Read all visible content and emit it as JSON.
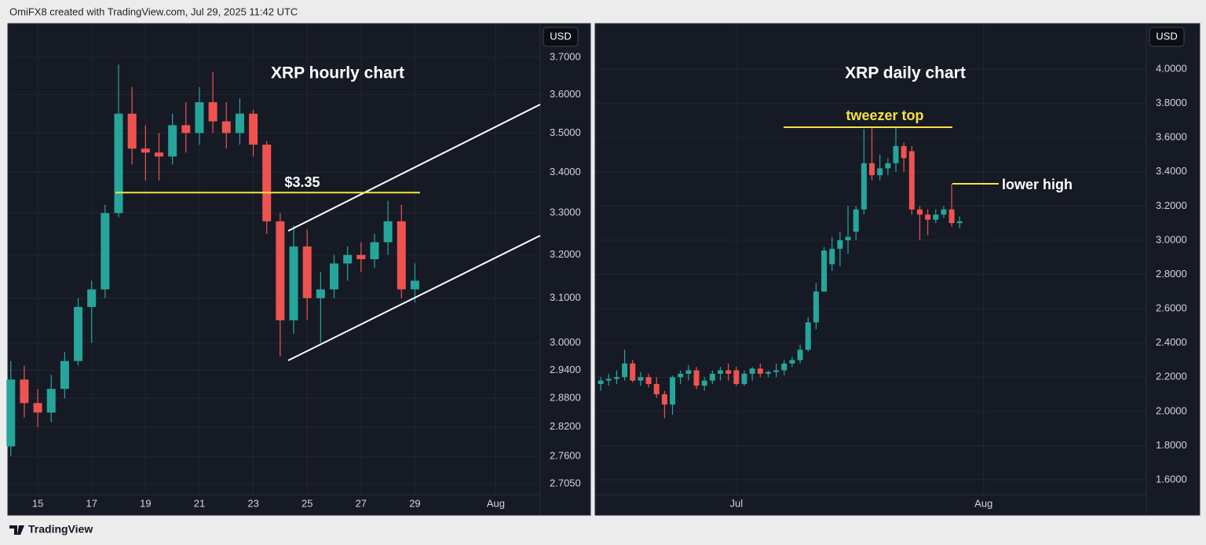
{
  "header": {
    "credit": "OmiFX8 created with TradingView.com, Jul 29, 2025 11:42 UTC"
  },
  "footer": {
    "brand": "TradingView"
  },
  "chart_data": [
    {
      "type": "candlestick",
      "title": "XRP hourly chart",
      "axis_label": "USD",
      "log_scale": true,
      "grid": true,
      "up_color": "#26a69a",
      "down_color": "#ef5350",
      "xlim": [
        13.89,
        33.65
      ],
      "xticks": [
        15,
        17,
        19,
        21,
        23,
        25,
        27,
        29,
        {
          "value": 32,
          "label": "Aug"
        }
      ],
      "ylim": [
        2.683,
        3.793
      ],
      "yticks": [
        {
          "value": 3.7,
          "label": "3.7000"
        },
        {
          "value": 3.6,
          "label": "3.6000"
        },
        {
          "value": 3.5,
          "label": "3.5000"
        },
        {
          "value": 3.4,
          "label": "3.4000"
        },
        {
          "value": 3.3,
          "label": "3.3000"
        },
        {
          "value": 3.2,
          "label": "3.2000"
        },
        {
          "value": 3.1,
          "label": "3.1000"
        },
        {
          "value": 3.0,
          "label": "3.0000"
        },
        {
          "value": 2.94,
          "label": "2.9400"
        },
        {
          "value": 2.88,
          "label": "2.8800"
        },
        {
          "value": 2.82,
          "label": "2.8200"
        },
        {
          "value": 2.76,
          "label": "2.7600"
        },
        {
          "value": 2.705,
          "label": "2.7050"
        }
      ],
      "level": 3.35,
      "level_label": "$3.35",
      "level_color": "#f5e342",
      "x": [
        14,
        14.5,
        15,
        15.5,
        16,
        16.5,
        17,
        17.5,
        18,
        18.5,
        19,
        19.5,
        20,
        20.5,
        21,
        21.5,
        22,
        22.5,
        23,
        23.5,
        24,
        24.5,
        25,
        25.5,
        26,
        26.5,
        27,
        27.5,
        28,
        28.5,
        29
      ],
      "open": [
        2.78,
        2.92,
        2.87,
        2.85,
        2.9,
        2.96,
        3.08,
        3.12,
        3.3,
        3.55,
        3.46,
        3.45,
        3.44,
        3.52,
        3.5,
        3.58,
        3.53,
        3.5,
        3.55,
        3.47,
        3.28,
        3.05,
        3.22,
        3.1,
        3.12,
        3.18,
        3.2,
        3.19,
        3.23,
        3.28,
        3.12
      ],
      "high": [
        2.96,
        2.95,
        2.9,
        2.93,
        2.98,
        3.1,
        3.14,
        3.32,
        3.68,
        3.62,
        3.52,
        3.5,
        3.55,
        3.58,
        3.62,
        3.66,
        3.58,
        3.59,
        3.56,
        3.48,
        3.3,
        3.27,
        3.26,
        3.16,
        3.2,
        3.22,
        3.23,
        3.25,
        3.33,
        3.32,
        3.18
      ],
      "low": [
        2.76,
        2.84,
        2.82,
        2.83,
        2.88,
        2.95,
        3.0,
        3.1,
        3.29,
        3.42,
        3.38,
        3.38,
        3.42,
        3.45,
        3.47,
        3.5,
        3.46,
        3.47,
        3.44,
        3.25,
        2.97,
        3.02,
        3.05,
        3.0,
        3.1,
        3.14,
        3.16,
        3.17,
        3.2,
        3.1,
        3.09
      ],
      "close": [
        2.92,
        2.87,
        2.85,
        2.9,
        2.96,
        3.08,
        3.12,
        3.3,
        3.55,
        3.46,
        3.45,
        3.44,
        3.52,
        3.5,
        3.58,
        3.53,
        3.5,
        3.55,
        3.47,
        3.28,
        3.05,
        3.22,
        3.1,
        3.12,
        3.18,
        3.2,
        3.19,
        3.23,
        3.28,
        3.12,
        3.14
      ]
    },
    {
      "type": "candlestick",
      "title": "XRP daily chart",
      "axis_label": "USD",
      "log_scale": false,
      "grid": true,
      "up_color": "#26a69a",
      "down_color": "#ef5350",
      "xlim": [
        -16.7,
        52.4
      ],
      "xticks": [
        {
          "value": 1,
          "label": "Jul"
        },
        {
          "value": 32,
          "label": "Aug"
        }
      ],
      "ylim": [
        1.513,
        4.266
      ],
      "yticks": [
        {
          "value": 4.0,
          "label": "4.0000"
        },
        {
          "value": 3.8,
          "label": "3.8000"
        },
        {
          "value": 3.6,
          "label": "3.6000"
        },
        {
          "value": 3.4,
          "label": "3.4000"
        },
        {
          "value": 3.2,
          "label": "3.2000"
        },
        {
          "value": 3.0,
          "label": "3.0000"
        },
        {
          "value": 2.8,
          "label": "2.8000"
        },
        {
          "value": 2.6,
          "label": "2.6000"
        },
        {
          "value": 2.4,
          "label": "2.4000"
        },
        {
          "value": 2.2,
          "label": "2.2000"
        },
        {
          "value": 2.0,
          "label": "2.0000"
        },
        {
          "value": 1.8,
          "label": "1.8000"
        },
        {
          "value": 1.6,
          "label": "1.6000"
        }
      ],
      "annotations": [
        {
          "text": "tweezer top"
        },
        {
          "text": "lower high"
        }
      ],
      "x": [
        -16,
        -15,
        -14,
        -13,
        -12,
        -11,
        -10,
        -9,
        -8,
        -7,
        -6,
        -5,
        -4,
        -3,
        -2,
        -1,
        0,
        1,
        2,
        3,
        4,
        5,
        6,
        7,
        8,
        9,
        10,
        11,
        12,
        13,
        14,
        15,
        16,
        17,
        18,
        19,
        20,
        21,
        22,
        23,
        24,
        25,
        26,
        27,
        28,
        29
      ],
      "open": [
        2.16,
        2.18,
        2.19,
        2.2,
        2.28,
        2.18,
        2.2,
        2.16,
        2.1,
        2.04,
        2.2,
        2.22,
        2.24,
        2.15,
        2.18,
        2.22,
        2.24,
        2.24,
        2.16,
        2.22,
        2.25,
        2.22,
        2.23,
        2.24,
        2.28,
        2.3,
        2.36,
        2.52,
        2.7,
        2.86,
        2.95,
        3.0,
        3.05,
        3.18,
        3.45,
        3.38,
        3.42,
        3.45,
        3.55,
        3.52,
        3.18,
        3.15,
        3.12,
        3.15,
        3.18,
        3.1
      ],
      "high": [
        2.2,
        2.22,
        2.24,
        2.36,
        2.3,
        2.23,
        2.22,
        2.2,
        2.12,
        2.21,
        2.24,
        2.27,
        2.26,
        2.2,
        2.24,
        2.26,
        2.28,
        2.26,
        2.24,
        2.26,
        2.28,
        2.24,
        2.28,
        2.3,
        2.32,
        2.39,
        2.55,
        2.75,
        2.96,
        3.02,
        3.05,
        3.2,
        3.2,
        3.65,
        3.66,
        3.5,
        3.48,
        3.66,
        3.57,
        3.55,
        3.2,
        3.18,
        3.18,
        3.2,
        3.33,
        3.14
      ],
      "low": [
        2.12,
        2.15,
        2.16,
        2.18,
        2.17,
        2.15,
        2.14,
        2.08,
        1.96,
        1.98,
        2.16,
        2.18,
        2.13,
        2.12,
        2.16,
        2.18,
        2.18,
        2.15,
        2.15,
        2.18,
        2.2,
        2.2,
        2.2,
        2.21,
        2.26,
        2.28,
        2.35,
        2.48,
        2.7,
        2.82,
        2.85,
        2.92,
        3.0,
        3.15,
        3.35,
        3.35,
        3.38,
        3.4,
        3.4,
        3.15,
        3.0,
        3.03,
        3.1,
        3.13,
        3.08,
        3.07
      ],
      "close": [
        2.18,
        2.19,
        2.2,
        2.28,
        2.18,
        2.2,
        2.16,
        2.1,
        2.04,
        2.2,
        2.22,
        2.24,
        2.15,
        2.18,
        2.22,
        2.24,
        2.22,
        2.16,
        2.22,
        2.25,
        2.22,
        2.23,
        2.24,
        2.28,
        2.3,
        2.36,
        2.52,
        2.7,
        2.94,
        2.95,
        3.0,
        3.02,
        3.18,
        3.45,
        3.38,
        3.42,
        3.45,
        3.55,
        3.48,
        3.18,
        3.15,
        3.12,
        3.15,
        3.18,
        3.1,
        3.11
      ]
    }
  ]
}
